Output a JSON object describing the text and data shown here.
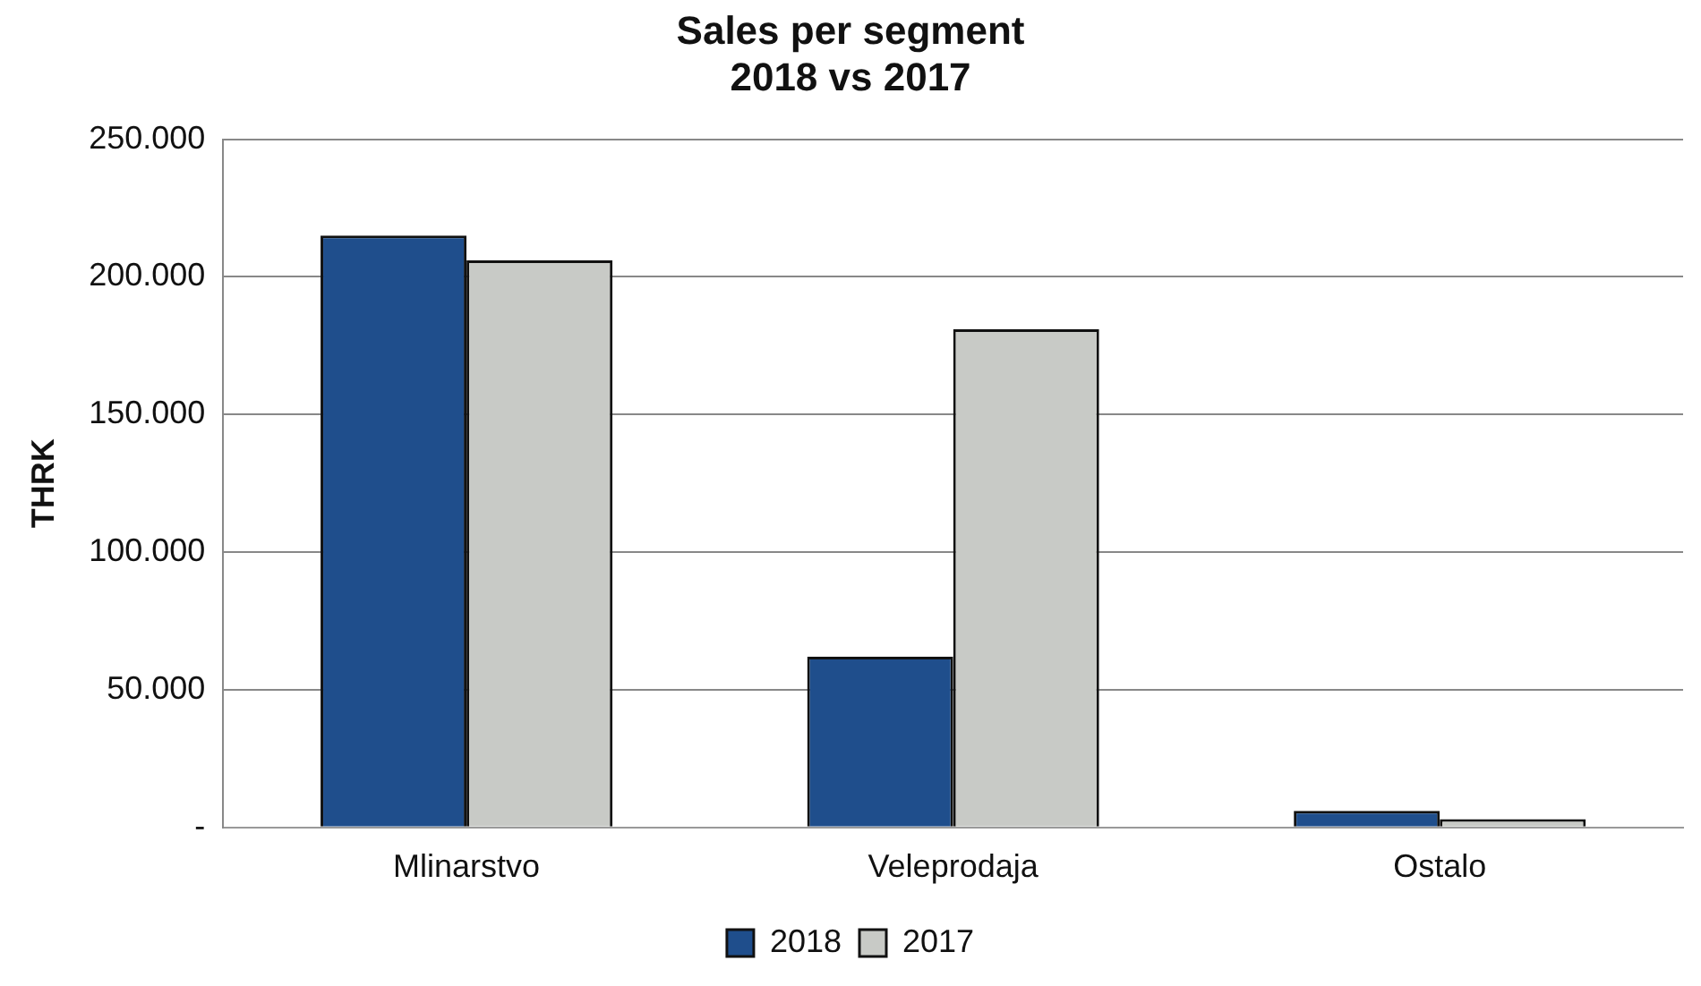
{
  "chart_data": {
    "type": "bar",
    "title": "Sales per segment\n2018 vs 2017",
    "ylabel": "THRK",
    "categories": [
      "Mlinarstvo",
      "Veleprodaja",
      "Ostalo"
    ],
    "series": [
      {
        "name": "2018",
        "color": "#1f4e8c",
        "values": [
          215000,
          62000,
          6000
        ]
      },
      {
        "name": "2017",
        "color": "#c8cac6",
        "values": [
          206000,
          181000,
          3000
        ]
      }
    ],
    "ylim": [
      0,
      250000
    ],
    "yticks": [
      {
        "value": 0,
        "label": "-"
      },
      {
        "value": 50000,
        "label": "50.000"
      },
      {
        "value": 100000,
        "label": "100.000"
      },
      {
        "value": 150000,
        "label": "150.000"
      },
      {
        "value": 200000,
        "label": "200.000"
      },
      {
        "value": 250000,
        "label": "250.000"
      }
    ],
    "grid": "y",
    "legend": "bottom"
  }
}
